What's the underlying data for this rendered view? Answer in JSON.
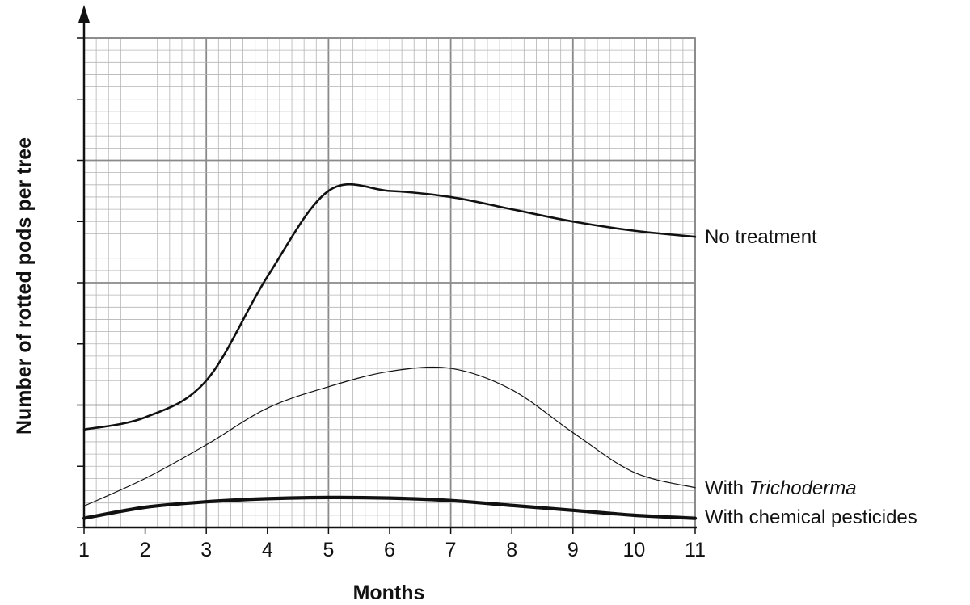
{
  "chart_data": {
    "type": "line",
    "title": "",
    "xlabel": "Months",
    "ylabel": "Number of rotted pods per tree",
    "x": [
      1,
      2,
      3,
      4,
      5,
      6,
      7,
      8,
      9,
      10,
      11
    ],
    "xlim": [
      1,
      11
    ],
    "ylim": [
      0,
      8
    ],
    "y_tick_labels_shown": false,
    "grid": true,
    "series": [
      {
        "name": "No treatment",
        "values": [
          1.6,
          1.8,
          2.4,
          4.1,
          5.5,
          5.5,
          5.4,
          5.2,
          5.0,
          4.85,
          4.75
        ],
        "color": "#111111"
      },
      {
        "name_prefix": "With ",
        "name_italic": "Trichoderma",
        "values": [
          0.35,
          0.8,
          1.35,
          1.95,
          2.3,
          2.55,
          2.6,
          2.25,
          1.55,
          0.9,
          0.65
        ],
        "color": "#111111"
      },
      {
        "name": "With chemical pesticides",
        "values": [
          0.15,
          0.33,
          0.42,
          0.47,
          0.49,
          0.48,
          0.44,
          0.36,
          0.28,
          0.2,
          0.15
        ],
        "color": "#111111"
      }
    ],
    "legend": "inline labels at right end of each line"
  }
}
